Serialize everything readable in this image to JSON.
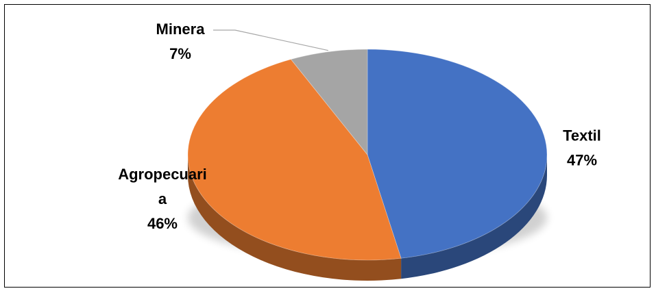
{
  "chart_data": {
    "type": "pie",
    "style": "3d",
    "categories": [
      "Textil",
      "Agropecuaria",
      "Minera"
    ],
    "values": [
      47,
      46,
      7
    ],
    "percent_labels": [
      "47%",
      "46%",
      "7%"
    ],
    "label_lines": {
      "Textil": [
        "Textil"
      ],
      "Agropecuaria": [
        "Agropecuari",
        "a"
      ],
      "Minera": [
        "Minera"
      ]
    },
    "colors": [
      "#4472C4",
      "#ED7D31",
      "#A5A5A5"
    ],
    "legend": "none",
    "title": ""
  }
}
